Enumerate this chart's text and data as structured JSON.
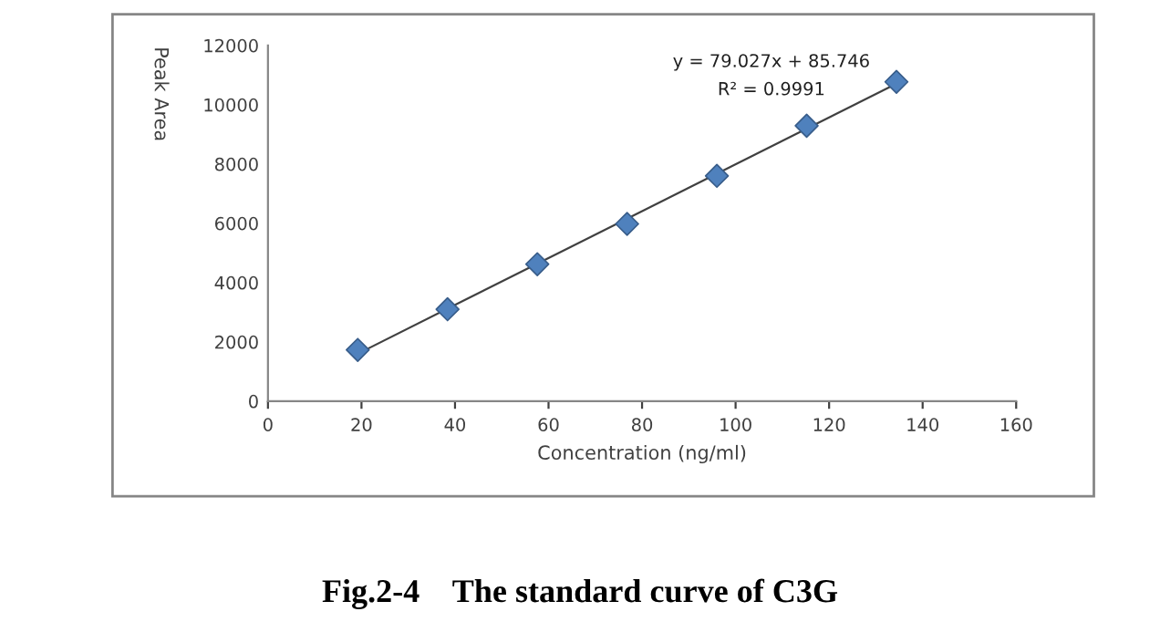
{
  "chart_data": {
    "type": "scatter",
    "title": "Fig.2-4    The standard curve of C3G",
    "xlabel": "Concentration (ng/ml)",
    "ylabel": "Peak Area",
    "annotations": [
      "y = 79.027x + 85.746",
      "R² = 0.9991"
    ],
    "x": [
      19.2,
      38.4,
      57.6,
      76.8,
      96,
      115.2,
      134.4
    ],
    "series": [
      {
        "color": "#4f81bd",
        "marker": "diamond",
        "values": [
          1730,
          3100,
          4620,
          5980,
          7600,
          9290,
          10770
        ]
      },
      {
        "type": "line",
        "color": "#404040",
        "marker": "none",
        "line_style": "solid",
        "x": [
          19.2,
          134.4
        ],
        "values": [
          1600,
          10710
        ]
      }
    ],
    "xlim": [
      0,
      160
    ],
    "xticks": [
      0,
      20,
      40,
      60,
      80,
      100,
      120,
      140,
      160
    ],
    "ylim": [
      0,
      12000
    ],
    "yticks": [
      0,
      2000,
      4000,
      6000,
      8000,
      10000,
      12000
    ],
    "grid": false,
    "legend": false
  }
}
